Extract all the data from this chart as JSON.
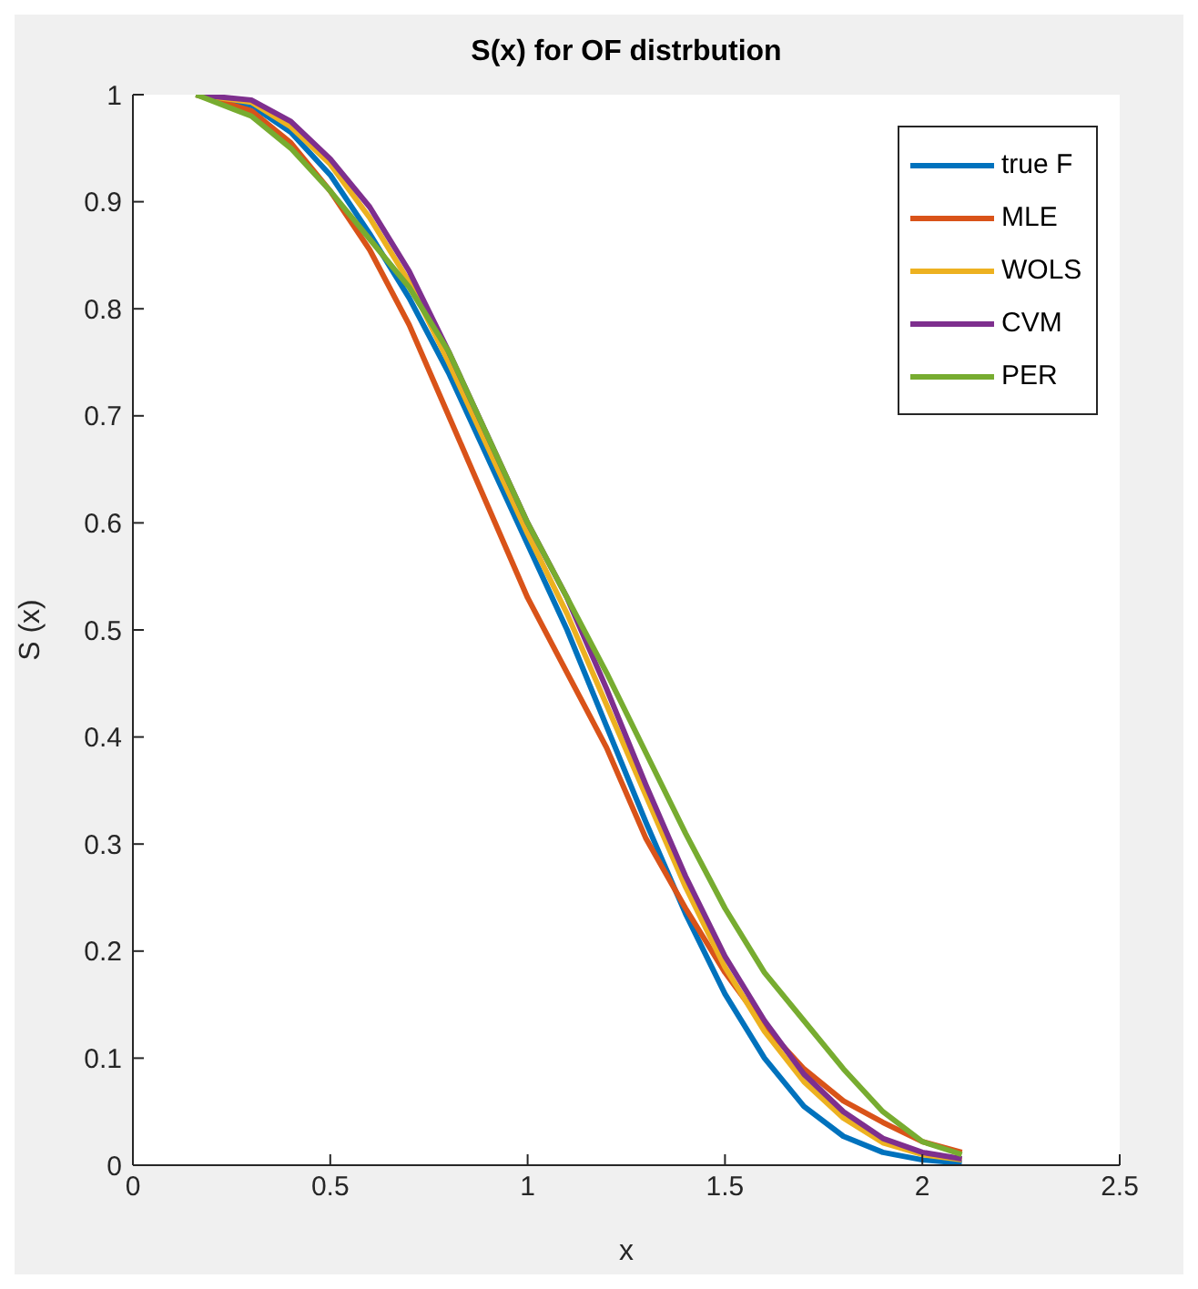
{
  "chart_data": {
    "type": "line",
    "title": "S(x) for OF distrbution",
    "xlabel": "x",
    "ylabel": "S (x)",
    "xlim": [
      0,
      2.5
    ],
    "xticks": [
      0,
      0.5,
      1,
      1.5,
      2,
      2.5
    ],
    "ylim": [
      0,
      1
    ],
    "yticks": [
      0,
      0.1,
      0.2,
      0.3,
      0.4,
      0.5,
      0.6,
      0.7,
      0.8,
      0.9,
      1
    ],
    "grid": false,
    "legend": "top right",
    "marker": "none",
    "line_style": "solid",
    "x": [
      0.16,
      0.3,
      0.4,
      0.5,
      0.6,
      0.7,
      0.8,
      0.9,
      1.0,
      1.1,
      1.2,
      1.3,
      1.4,
      1.5,
      1.6,
      1.7,
      1.8,
      1.9,
      2.0,
      2.1
    ],
    "series": [
      {
        "name": "true F",
        "color": "#0072bd",
        "values": [
          1.0,
          0.99,
          0.965,
          0.925,
          0.87,
          0.81,
          0.74,
          0.66,
          0.58,
          0.5,
          0.41,
          0.32,
          0.235,
          0.16,
          0.1,
          0.055,
          0.027,
          0.012,
          0.005,
          0.002
        ]
      },
      {
        "name": "MLE",
        "color": "#d95319",
        "values": [
          1.0,
          0.985,
          0.955,
          0.91,
          0.855,
          0.785,
          0.7,
          0.615,
          0.53,
          0.46,
          0.39,
          0.305,
          0.24,
          0.18,
          0.13,
          0.09,
          0.06,
          0.04,
          0.022,
          0.012
        ]
      },
      {
        "name": "WOLS",
        "color": "#edb120",
        "values": [
          1.0,
          0.993,
          0.97,
          0.935,
          0.885,
          0.825,
          0.75,
          0.67,
          0.59,
          0.515,
          0.43,
          0.345,
          0.26,
          0.185,
          0.125,
          0.078,
          0.044,
          0.021,
          0.01,
          0.005
        ]
      },
      {
        "name": "CVM",
        "color": "#7e2f8e",
        "values": [
          1.0,
          0.995,
          0.975,
          0.94,
          0.895,
          0.835,
          0.76,
          0.68,
          0.6,
          0.53,
          0.445,
          0.355,
          0.27,
          0.195,
          0.135,
          0.085,
          0.05,
          0.025,
          0.012,
          0.006
        ]
      },
      {
        "name": "PER",
        "color": "#77ac30",
        "values": [
          1.0,
          0.98,
          0.95,
          0.91,
          0.865,
          0.82,
          0.76,
          0.68,
          0.6,
          0.53,
          0.46,
          0.385,
          0.31,
          0.24,
          0.18,
          0.135,
          0.09,
          0.05,
          0.022,
          0.01
        ]
      }
    ]
  }
}
